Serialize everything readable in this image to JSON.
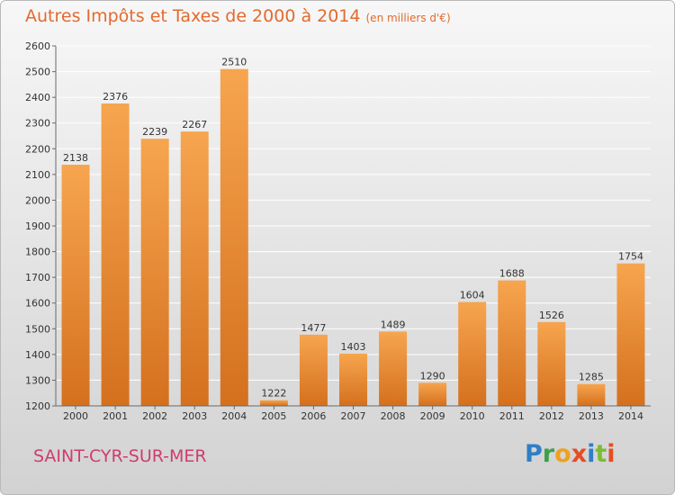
{
  "header": {
    "title": "Autres Impôts et Taxes de 2000 à 2014",
    "subtitle": "(en milliers d'€)"
  },
  "footer": {
    "commune": "SAINT-CYR-SUR-MER",
    "logo_text": "Proxiti"
  },
  "colors": {
    "bar_top": "#f7a54f",
    "bar_bottom": "#d4701e",
    "title": "#e36a2d",
    "commune": "#cf3d6c",
    "grid": "#ffffff"
  },
  "chart_data": {
    "type": "bar",
    "title": "Autres Impôts et Taxes de 2000 à 2014",
    "categories": [
      "2000",
      "2001",
      "2002",
      "2003",
      "2004",
      "2005",
      "2006",
      "2007",
      "2008",
      "2009",
      "2010",
      "2011",
      "2012",
      "2013",
      "2014"
    ],
    "values": [
      2138,
      2376,
      2239,
      2267,
      2510,
      1222,
      1477,
      1403,
      1489,
      1290,
      1604,
      1688,
      1526,
      1285,
      1754
    ],
    "ylim": [
      1200,
      2600
    ],
    "yticks": [
      1200,
      1300,
      1400,
      1500,
      1600,
      1700,
      1800,
      1900,
      2000,
      2100,
      2200,
      2300,
      2400,
      2500,
      2600
    ],
    "grid": true,
    "legend": "none"
  }
}
